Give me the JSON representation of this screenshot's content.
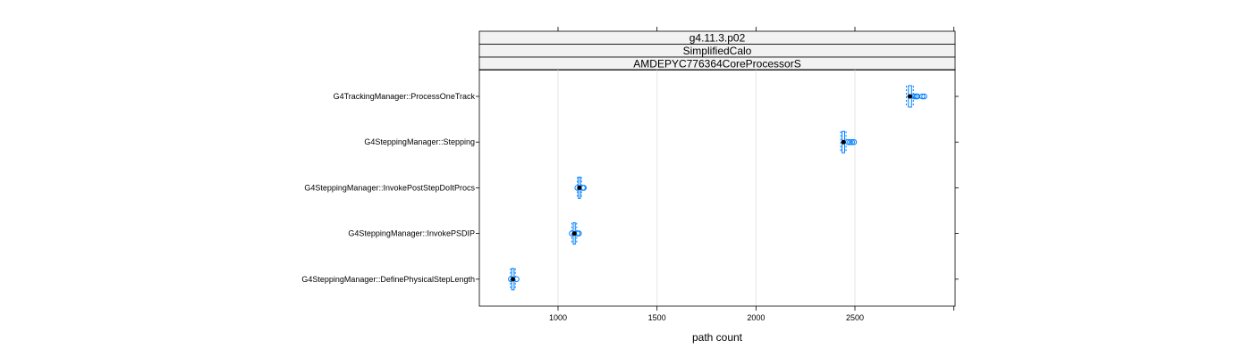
{
  "chart_data": {
    "type": "box",
    "strips": [
      "g4.11.3.p02",
      "SimplifiedCalo",
      "AMDEPYC776364CoreProcessorS"
    ],
    "xlabel": "path count",
    "xlim": [
      1000,
      3000
    ],
    "xticks": [
      1000,
      1500,
      2000,
      2500
    ],
    "grid": true,
    "categories": [
      "G4TrackingManager::ProcessOneTrack",
      "G4SteppingManager::Stepping",
      "G4SteppingManager::InvokePostStepDoItProcs",
      "G4SteppingManager::InvokePSDIP",
      "G4SteppingManager::DefinePhysicalStepLength"
    ],
    "boxes": [
      {
        "whisker_low": 2760,
        "q1": 2770,
        "median": 2778,
        "q3": 2786,
        "whisker_high": 2795,
        "outliers": [
          2800,
          2810,
          2815,
          2840,
          2850
        ]
      },
      {
        "whisker_low": 2428,
        "q1": 2435,
        "median": 2442,
        "q3": 2448,
        "whisker_high": 2455,
        "outliers": [
          2465,
          2475,
          2485,
          2495
        ]
      },
      {
        "whisker_low": 1098,
        "q1": 1103,
        "median": 1108,
        "q3": 1113,
        "whisker_high": 1118,
        "outliers": [
          1098,
          1125,
          1130
        ]
      },
      {
        "whisker_low": 1070,
        "q1": 1077,
        "median": 1082,
        "q3": 1087,
        "whisker_high": 1094,
        "outliers": [
          1070,
          1098,
          1105
        ]
      },
      {
        "whisker_low": 760,
        "q1": 766,
        "median": 772,
        "q3": 778,
        "whisker_high": 784,
        "outliers": [
          762,
          790
        ]
      }
    ],
    "colors": {
      "box": "#0080ff",
      "median_dot": "#000000",
      "outlier": "#0080ff",
      "grid": "#e6e6e6",
      "strip_bg": "#f2f2f2"
    }
  }
}
